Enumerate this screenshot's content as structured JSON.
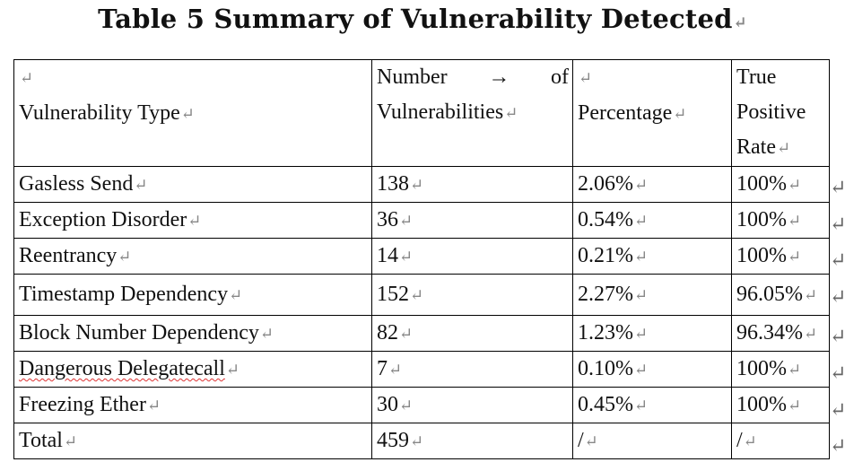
{
  "title": "Table 5 Summary of Vulnerability Detected",
  "header": {
    "type": "Vulnerability Type",
    "count_a": "Number",
    "count_arrow": "→",
    "count_b": "of",
    "count_c": "Vulnerabilities",
    "pct": "Percentage",
    "tpr_a": "True",
    "tpr_b": "Positive",
    "tpr_c": "Rate"
  },
  "rows": [
    {
      "type": "Gasless Send",
      "count": "138",
      "pct": "2.06%",
      "tpr": "100%"
    },
    {
      "type": "Exception Disorder",
      "count": "36",
      "pct": "0.54%",
      "tpr": "100%"
    },
    {
      "type": "Reentrancy",
      "count": "14",
      "pct": "0.21%",
      "tpr": "100%"
    },
    {
      "type": "Timestamp Dependency",
      "count": "152",
      "pct": "2.27%",
      "tpr": "96.05%"
    },
    {
      "type": "Block Number Dependency",
      "count": "82",
      "pct": "1.23%",
      "tpr": "96.34%"
    },
    {
      "type": "Dangerous Delegatecall",
      "count": "7",
      "pct": "0.10%",
      "tpr": "100%"
    },
    {
      "type": "Freezing Ether",
      "count": "30",
      "pct": "0.45%",
      "tpr": "100%"
    },
    {
      "type": "Total",
      "count": "459",
      "pct": "/",
      "tpr": "/"
    }
  ]
}
